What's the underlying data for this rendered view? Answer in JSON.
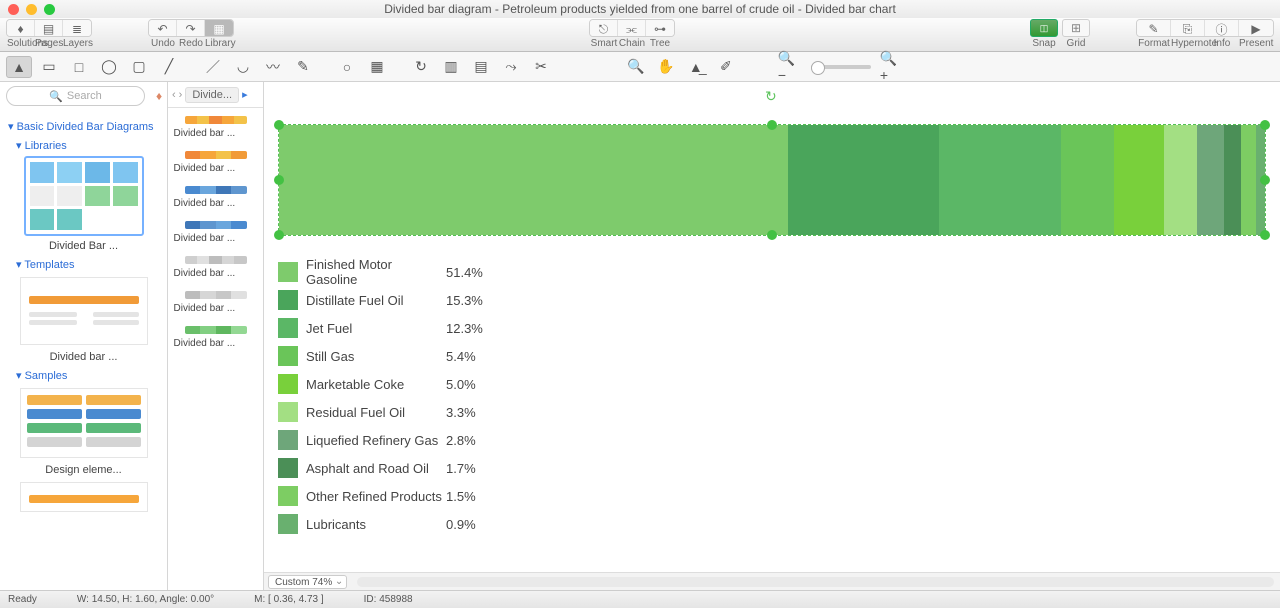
{
  "title": "Divided bar diagram - Petroleum products yielded from one barrel of crude oil - Divided bar chart",
  "mainToolbar": {
    "nav": [
      {
        "label": "Solutions",
        "icon": "⌂"
      },
      {
        "label": "Pages",
        "icon": "▤"
      },
      {
        "label": "Layers",
        "icon": "≣"
      }
    ],
    "undo": "Undo",
    "redo": "Redo",
    "library": "Library",
    "connectors": [
      {
        "label": "Smart"
      },
      {
        "label": "Chain"
      },
      {
        "label": "Tree"
      }
    ],
    "snap": "Snap",
    "grid": "Grid",
    "right": [
      {
        "label": "Format"
      },
      {
        "label": "Hypernote"
      },
      {
        "label": "Info"
      },
      {
        "label": "Present"
      }
    ]
  },
  "search_placeholder": "Search",
  "library": {
    "heading": "Basic Divided Bar Diagrams",
    "sections": [
      {
        "title": "Libraries",
        "caption": "Divided Bar ..."
      },
      {
        "title": "Templates",
        "caption": "Divided bar ...",
        "bar_color": "#f19b38"
      },
      {
        "title": "Samples",
        "caption": "Design eleme..."
      }
    ]
  },
  "breadcrumb": {
    "item": "Divide..."
  },
  "stencils": [
    {
      "colors": [
        "#f6a63b",
        "#f3c249",
        "#f0883a",
        "#f6a63b",
        "#f3c249"
      ],
      "label": "Divided bar ..."
    },
    {
      "colors": [
        "#f0883a",
        "#f6a63b",
        "#f3c249",
        "#f19b38"
      ],
      "label": "Divided bar ..."
    },
    {
      "colors": [
        "#4a8ad0",
        "#6aa6dd",
        "#3f77b8",
        "#5f96cf"
      ],
      "label": "Divided bar ..."
    },
    {
      "colors": [
        "#3f77b8",
        "#5f96cf",
        "#6aa6dd",
        "#4a8ad0"
      ],
      "label": "Divided bar ..."
    },
    {
      "colors": [
        "#cfcfcf",
        "#e0e0e0",
        "#bdbdbd",
        "#d6d6d6",
        "#c7c7c7"
      ],
      "label": "Divided bar ..."
    },
    {
      "colors": [
        "#bdbdbd",
        "#d6d6d6",
        "#c7c7c7",
        "#e0e0e0"
      ],
      "label": "Divided bar ..."
    },
    {
      "colors": [
        "#6abf6a",
        "#82cf82",
        "#5fb75f",
        "#93d893"
      ],
      "label": "Divided bar ..."
    }
  ],
  "chart": {
    "type": "divided-bar",
    "segments": [
      {
        "label": "Finished Motor Gasoline",
        "value": 51.4,
        "display": "51.4%",
        "color": "#7ecb6c"
      },
      {
        "label": "Distillate Fuel Oil",
        "value": 15.3,
        "display": "15.3%",
        "color": "#4aa55b"
      },
      {
        "label": "Jet Fuel",
        "value": 12.3,
        "display": "12.3%",
        "color": "#5bb766"
      },
      {
        "label": "Still Gas",
        "value": 5.4,
        "display": "5.4%",
        "color": "#6ac559"
      },
      {
        "label": "Marketable Coke",
        "value": 5.0,
        "display": "5.0%",
        "color": "#79d03b"
      },
      {
        "label": "Residual Fuel Oil",
        "value": 3.3,
        "display": "3.3%",
        "color": "#a3df83"
      },
      {
        "label": "Liquefied Refinery Gas",
        "value": 2.8,
        "display": "2.8%",
        "color": "#6ea67a"
      },
      {
        "label": "Asphalt and Road Oil",
        "value": 1.7,
        "display": "1.7%",
        "color": "#4b8f57"
      },
      {
        "label": "Other Refined Products",
        "value": 1.5,
        "display": "1.5%",
        "color": "#7dcd63"
      },
      {
        "label": "Lubricants",
        "value": 0.9,
        "display": "0.9%",
        "color": "#69b06f"
      }
    ]
  },
  "zoom": "Custom 74%",
  "status": {
    "ready": "Ready",
    "dims": "W: 14.50,  H: 1.60,  Angle: 0.00°",
    "mouse": "M: [ 0.36, 4.73 ]",
    "id": "ID: 458988"
  }
}
